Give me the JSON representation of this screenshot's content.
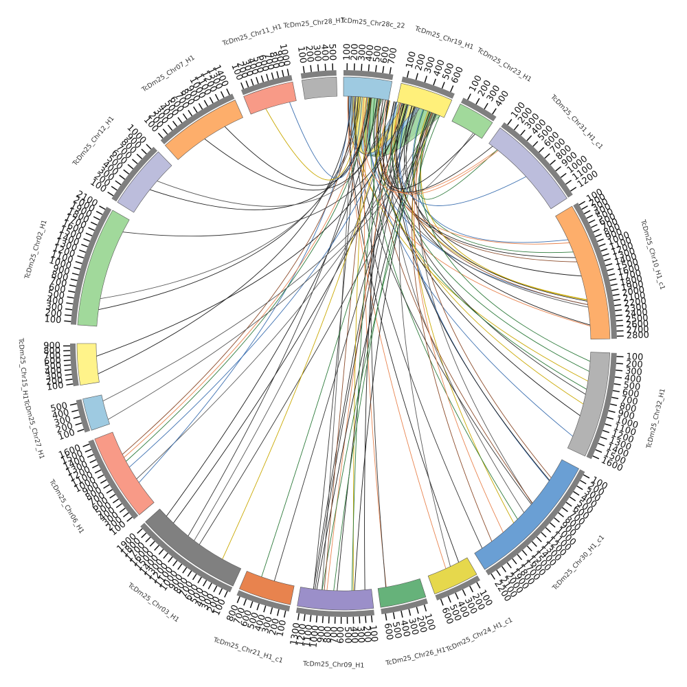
{
  "segments": [
    {
      "name": "TcDm25_Chr28c_22",
      "color": "#9ecae1",
      "ticks": [
        "100",
        "200",
        "300",
        "400",
        "500",
        "600",
        "700"
      ]
    },
    {
      "name": "TcDm25_Chr19_H1",
      "color": "#fff07a",
      "ticks": [
        "100",
        "200",
        "300",
        "400",
        "500",
        "600"
      ]
    },
    {
      "name": "TcDm25_Chr23_H1",
      "color": "#a1d99b",
      "ticks": [
        "100",
        "200",
        "300",
        "400"
      ]
    },
    {
      "name": "TcDm25_Chr31_H1_c1",
      "color": "#bcbddc",
      "ticks": [
        "100",
        "200",
        "300",
        "400",
        "500",
        "600",
        "700",
        "800",
        "900",
        "1000",
        "1100",
        "1200"
      ]
    },
    {
      "name": "TcDm25_Chr10_H1_c1",
      "color": "#fdae6b",
      "ticks": [
        "100",
        "200",
        "300",
        "400",
        "500",
        "600",
        "700",
        "800",
        "900",
        "1000",
        "1100",
        "1200",
        "1300",
        "1400",
        "1500",
        "1600",
        "1700",
        "1800",
        "1900",
        "2000",
        "2100",
        "2200",
        "2300",
        "2400",
        "2500",
        "2600",
        "2700",
        "2800"
      ]
    },
    {
      "name": "TcDm25_Chr32_H1",
      "color": "#b3b3b3",
      "ticks": [
        "100",
        "200",
        "300",
        "400",
        "500",
        "600",
        "700",
        "800",
        "900",
        "1000",
        "1100",
        "1200",
        "1300",
        "1400",
        "1500",
        "1600"
      ]
    },
    {
      "name": "TcDm25_Chr30_H1_c1",
      "color": "#6a9fd4",
      "ticks": [
        "100",
        "200",
        "300",
        "400",
        "500",
        "600",
        "700",
        "800",
        "900",
        "1000",
        "1100",
        "1200",
        "1300",
        "1400",
        "1500",
        "1600",
        "1700",
        "1800",
        "1900",
        "2000",
        "2100",
        "2200"
      ]
    },
    {
      "name": "TcDm25_Chr24_H1_c1",
      "color": "#e6d84c",
      "ticks": [
        "100",
        "200",
        "300",
        "400",
        "500",
        "600"
      ]
    },
    {
      "name": "TcDm25_Chr26_H1",
      "color": "#66b27a",
      "ticks": [
        "100",
        "200",
        "300",
        "400",
        "500",
        "600"
      ]
    },
    {
      "name": "TcDm25_Chr09_H1",
      "color": "#9b8fc9",
      "ticks": [
        "100",
        "200",
        "300",
        "400",
        "500",
        "600",
        "700",
        "800",
        "900",
        "1000",
        "1100",
        "1200",
        "1300"
      ]
    },
    {
      "name": "TcDm25_Chr21_H1_c1",
      "color": "#e8834e",
      "ticks": [
        "100",
        "200",
        "300",
        "400",
        "500",
        "600",
        "700",
        "800"
      ]
    },
    {
      "name": "TcDm25_Chr03_H1",
      "color": "#808080",
      "ticks": [
        "100",
        "200",
        "300",
        "400",
        "500",
        "600",
        "700",
        "800",
        "900",
        "1000",
        "1100",
        "1200",
        "1300",
        "1400",
        "1500",
        "1600",
        "1700",
        "1800",
        "1900"
      ]
    },
    {
      "name": "TcDm25_Chr06_H1",
      "color": "#f89a87",
      "ticks": [
        "100",
        "200",
        "300",
        "400",
        "500",
        "600",
        "700",
        "800",
        "900",
        "1000",
        "1100",
        "1200",
        "1300",
        "1400",
        "1500",
        "1600"
      ]
    },
    {
      "name": "TcDm25_Chr27_H1",
      "color": "#9ecae1",
      "ticks": [
        "100",
        "200",
        "300",
        "400",
        "500"
      ]
    },
    {
      "name": "TcDm25_Chr15_H1",
      "color": "#fff38a",
      "ticks": [
        "100",
        "200",
        "300",
        "400",
        "500",
        "600",
        "700",
        "800",
        "900"
      ]
    },
    {
      "name": "TcDm25_Chr02_H1",
      "color": "#a1d99b",
      "ticks": [
        "100",
        "200",
        "300",
        "400",
        "500",
        "600",
        "700",
        "800",
        "900",
        "1000",
        "1100",
        "1200",
        "1300",
        "1400",
        "1500",
        "1600",
        "1700",
        "1800",
        "1900",
        "2000",
        "2100"
      ]
    },
    {
      "name": "TcDm25_Chr12_H1",
      "color": "#bcbddc",
      "ticks": [
        "100",
        "200",
        "300",
        "400",
        "500",
        "600",
        "700",
        "800",
        "900",
        "1000"
      ]
    },
    {
      "name": "TcDm25_Chr07_H1",
      "color": "#fdae6b",
      "ticks": [
        "100",
        "200",
        "300",
        "400",
        "500",
        "600",
        "700",
        "800",
        "900",
        "1000",
        "1100",
        "1200",
        "1300",
        "1400"
      ]
    },
    {
      "name": "TcDm25_Chr11_H1",
      "color": "#f89a87",
      "ticks": [
        "100",
        "200",
        "300",
        "400",
        "500",
        "600",
        "700",
        "800",
        "900",
        "1000"
      ]
    },
    {
      "name": "TcDm25_Chr28_H1",
      "color": "#b3b3b3",
      "ticks": [
        "100",
        "200",
        "300",
        "400",
        "500"
      ]
    }
  ]
}
